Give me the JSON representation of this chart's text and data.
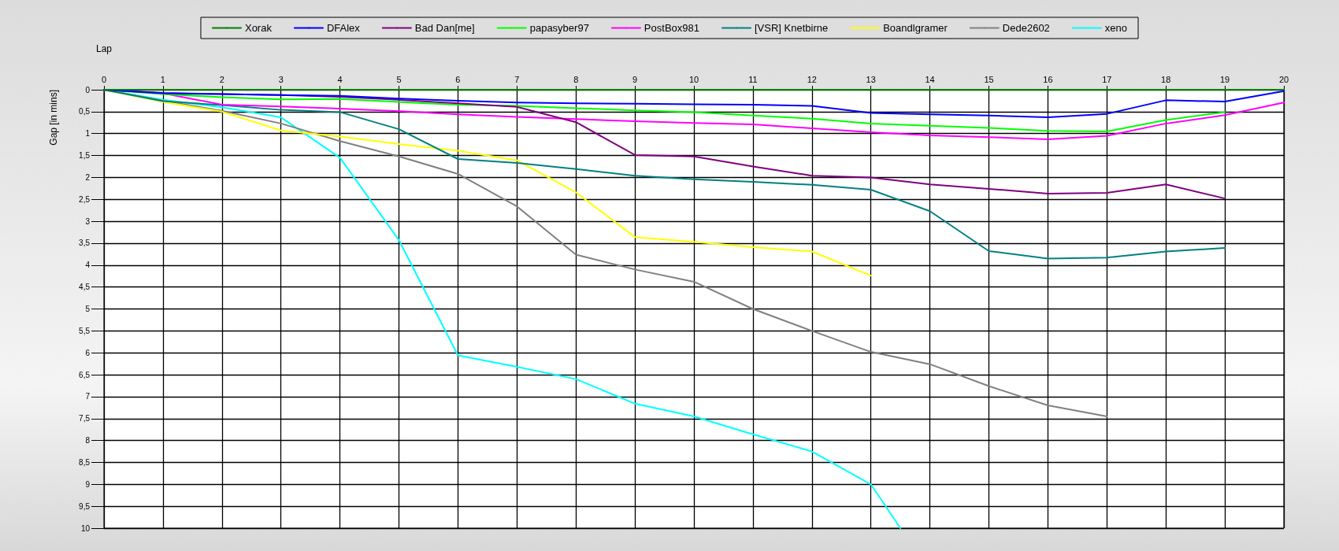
{
  "chart_data": {
    "type": "line",
    "xlabel": "Lap",
    "ylabel": "Gap [in mins]",
    "x": [
      0,
      1,
      2,
      3,
      4,
      5,
      6,
      7,
      8,
      9,
      10,
      11,
      12,
      13,
      14,
      15,
      16,
      17,
      18,
      19,
      20
    ],
    "xlim": [
      0,
      20
    ],
    "xticks": [
      0,
      1,
      2,
      3,
      4,
      5,
      6,
      7,
      8,
      9,
      10,
      11,
      12,
      13,
      14,
      15,
      16,
      17,
      18,
      19,
      20
    ],
    "ylim": [
      10,
      0
    ],
    "yticks": [
      0,
      {
        "value": 0.5,
        "label": "0,5"
      },
      1,
      {
        "value": 1.5,
        "label": "1,5"
      },
      2,
      {
        "value": 2.5,
        "label": "2,5"
      },
      3,
      {
        "value": 3.5,
        "label": "3,5"
      },
      4,
      {
        "value": 4.5,
        "label": "4,5"
      },
      5,
      {
        "value": 5.5,
        "label": "5,5"
      },
      6,
      {
        "value": 6.5,
        "label": "6,5"
      },
      7,
      {
        "value": 7.5,
        "label": "7,5"
      },
      8,
      {
        "value": 8.5,
        "label": "8,5"
      },
      9,
      {
        "value": 9.5,
        "label": "9,5"
      },
      10
    ],
    "grid": true,
    "legend": "top",
    "marker": "none",
    "series": [
      {
        "name": "Xorak",
        "color": "#008000",
        "values": [
          0,
          0,
          0,
          0,
          0,
          0,
          0,
          0,
          0,
          0,
          0,
          0,
          0,
          0,
          0,
          0,
          0,
          0,
          0,
          0,
          0
        ]
      },
      {
        "name": "DFAlex",
        "color": "#0000ff",
        "values": [
          0,
          0.08,
          0.1,
          0.12,
          0.14,
          0.2,
          0.25,
          0.29,
          0.31,
          0.32,
          0.33,
          0.34,
          0.37,
          0.53,
          0.56,
          0.59,
          0.63,
          0.55,
          0.24,
          0.27,
          0.03
        ]
      },
      {
        "name": "Bad Dan[me]",
        "color": "#800080",
        "values": [
          0,
          0.07,
          0.1,
          0.12,
          0.16,
          0.23,
          0.31,
          0.39,
          0.74,
          1.49,
          1.52,
          1.75,
          1.96,
          2.0,
          2.16,
          2.26,
          2.37,
          2.35,
          2.16,
          2.48,
          null
        ]
      },
      {
        "name": "papasyber97",
        "color": "#00ff00",
        "values": [
          0,
          0.1,
          0.17,
          0.22,
          0.21,
          0.28,
          0.34,
          0.37,
          0.42,
          0.47,
          0.51,
          0.59,
          0.66,
          0.77,
          0.82,
          0.87,
          0.94,
          0.95,
          0.69,
          0.51,
          null
        ]
      },
      {
        "name": "PostBox981",
        "color": "#ff00ff",
        "values": [
          0,
          0.08,
          0.34,
          0.38,
          0.43,
          0.49,
          0.56,
          0.62,
          0.67,
          0.72,
          0.76,
          0.79,
          0.88,
          0.97,
          1.04,
          1.08,
          1.13,
          1.05,
          0.77,
          0.58,
          0.29
        ]
      },
      {
        "name": "[VSR] Knetbirne",
        "color": "#008080",
        "values": [
          0,
          0.26,
          0.35,
          0.46,
          0.51,
          0.9,
          1.58,
          1.67,
          1.81,
          1.96,
          2.04,
          2.1,
          2.17,
          2.28,
          2.77,
          3.68,
          3.85,
          3.83,
          3.69,
          3.61,
          null
        ]
      },
      {
        "name": "Boandlgramer",
        "color": "#ffff00",
        "values": [
          0,
          0.28,
          0.5,
          0.93,
          1.07,
          1.24,
          1.39,
          1.61,
          2.34,
          3.36,
          3.47,
          3.59,
          3.69,
          4.24,
          null,
          null,
          null,
          null,
          null,
          null,
          null
        ]
      },
      {
        "name": "Dede2602",
        "color": "#808080",
        "values": [
          0,
          0.25,
          0.48,
          0.77,
          1.17,
          1.52,
          1.92,
          2.66,
          3.76,
          4.1,
          4.38,
          5.0,
          5.5,
          5.98,
          6.26,
          6.76,
          7.2,
          7.45,
          null,
          null,
          null
        ]
      },
      {
        "name": "xeno",
        "color": "#00ffff",
        "x": [
          0,
          1,
          2,
          3,
          4,
          5,
          6,
          7,
          8,
          9,
          10,
          11,
          12,
          13,
          13.5
        ],
        "values": [
          0,
          0.23,
          0.4,
          0.63,
          1.55,
          3.43,
          6.06,
          6.32,
          6.6,
          7.16,
          7.45,
          7.86,
          8.25,
          9.0,
          10
        ]
      }
    ]
  }
}
